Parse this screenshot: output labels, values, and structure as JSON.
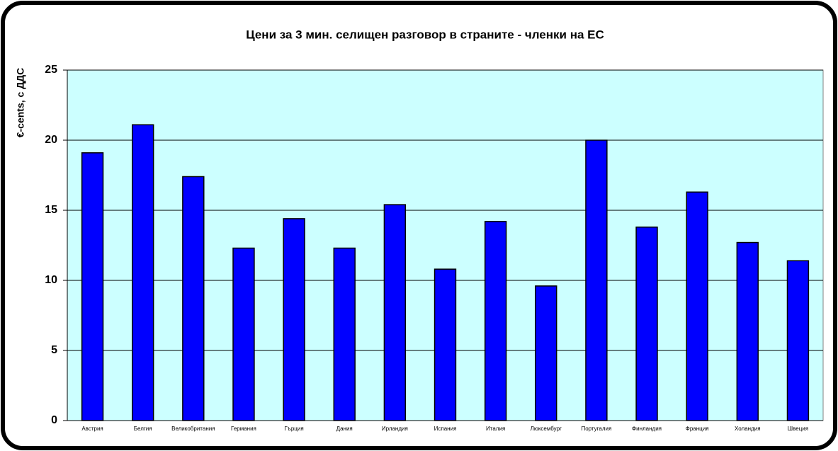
{
  "chart_data": {
    "type": "bar",
    "title": "Цени за 3 мин. селищен разговор в страните - членки на ЕС",
    "y_label": "€-cents, с ДДС",
    "categories": [
      "Австрия",
      "Белгия",
      "Великобритания",
      "Германия",
      "Гърция",
      "Дания",
      "Ирландия",
      "Испания",
      "Италия",
      "Люксембург",
      "Португалия",
      "Финландия",
      "Франция",
      "Холандия",
      "Швеция"
    ],
    "values": [
      19.1,
      21.1,
      17.4,
      12.3,
      14.4,
      12.3,
      15.4,
      10.8,
      14.2,
      9.6,
      20,
      13.8,
      16.3,
      12.7,
      11.4
    ],
    "color": "#0000ff",
    "ylim": [
      0,
      25
    ],
    "yticks": [
      0,
      5,
      10,
      15,
      20,
      25
    ],
    "grid": true
  }
}
